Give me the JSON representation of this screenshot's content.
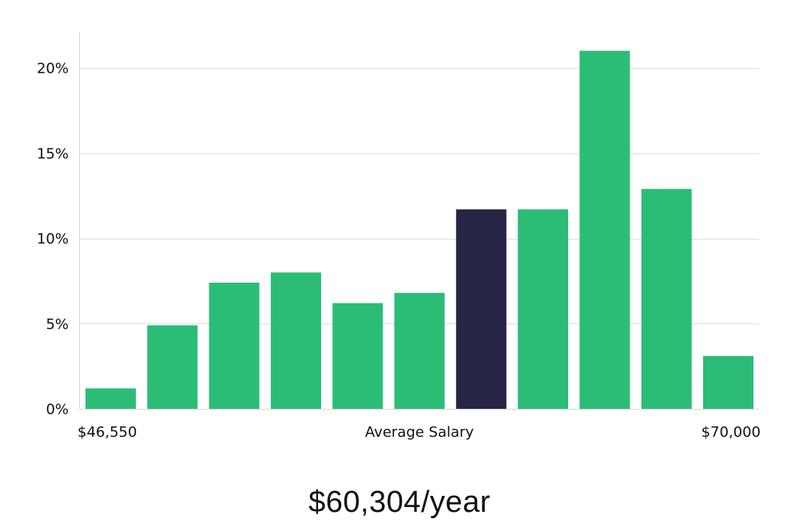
{
  "colors": {
    "bar": "#2bbd76",
    "highlight": "#272545",
    "grid": "#dddddd",
    "axis": "#d6d6d6"
  },
  "chart_data": {
    "type": "bar",
    "values": [
      1.2,
      4.9,
      7.4,
      8.0,
      6.2,
      6.8,
      11.7,
      11.7,
      21.0,
      12.9,
      3.1
    ],
    "highlight_index": 6,
    "ylim": [
      0,
      22
    ],
    "yticks": [
      0,
      5,
      10,
      15,
      20
    ],
    "ytick_labels": [
      "0%",
      "5%",
      "10%",
      "15%",
      "20%"
    ],
    "grid": true,
    "x_min_label": "$46,550",
    "xlabel": "Average Salary",
    "x_max_label": "$70,000"
  },
  "summary": {
    "average_salary": "$60,304/year"
  }
}
